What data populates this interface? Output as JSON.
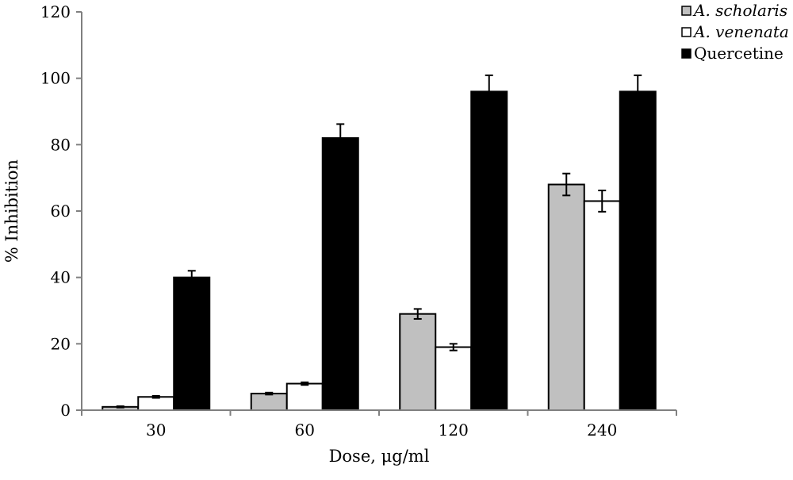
{
  "chart_data": {
    "type": "bar",
    "title": "",
    "xlabel": "Dose, μg/ml",
    "ylabel": "% Inhibition",
    "categories": [
      "30",
      "60",
      "120",
      "240"
    ],
    "ylim": [
      0,
      120
    ],
    "yticks": [
      0,
      20,
      40,
      60,
      80,
      100,
      120
    ],
    "grid": false,
    "legend_position": "top-right",
    "series": [
      {
        "name": "A. scholaris",
        "color": "#c0c0c0",
        "values": [
          1,
          5,
          29,
          68
        ],
        "errors": [
          0.2,
          0.3,
          1.5,
          3.3
        ]
      },
      {
        "name": "A. venenata",
        "color": "#ffffff",
        "values": [
          4,
          8,
          19,
          63
        ],
        "errors": [
          0.3,
          0.4,
          1.0,
          3.2
        ]
      },
      {
        "name": "Quercetine",
        "color": "#000000",
        "values": [
          40,
          82,
          96,
          96
        ],
        "errors": [
          2.0,
          4.2,
          4.9,
          4.9
        ]
      }
    ]
  }
}
